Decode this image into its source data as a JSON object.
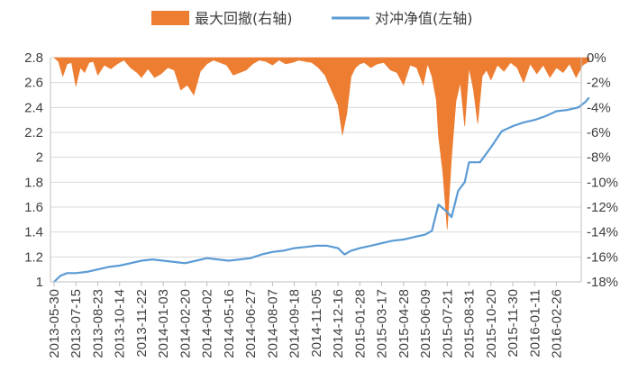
{
  "chart_data": {
    "type": "line+area",
    "title": "",
    "legend": {
      "position": "top-center",
      "items": [
        {
          "label": "最大回撤(右轴)",
          "type": "area",
          "color": "#ED7D31"
        },
        {
          "label": "对冲净值(左轴)",
          "type": "line",
          "color": "#5B9BD5"
        }
      ]
    },
    "left_axis": {
      "min": 1,
      "max": 2.8,
      "ticks": [
        "1",
        "1.2",
        "1.4",
        "1.6",
        "1.8",
        "2",
        "2.2",
        "2.4",
        "2.6",
        "2.8"
      ]
    },
    "right_axis": {
      "min": -18,
      "max": 0,
      "ticks": [
        "0%",
        "-2%",
        "-4%",
        "-6%",
        "-8%",
        "-10%",
        "-12%",
        "-14%",
        "-16%",
        "-18%"
      ]
    },
    "x_ticks": [
      "2013-05-30",
      "2013-07-15",
      "2013-08-23",
      "2013-10-14",
      "2013-11-22",
      "2014-01-03",
      "2014-02-20",
      "2014-04-02",
      "2014-05-16",
      "2014-06-27",
      "2014-08-07",
      "2014-09-18",
      "2014-11-05",
      "2014-12-16",
      "2015-01-28",
      "2015-03-17",
      "2015-04-28",
      "2015-06-09",
      "2015-07-21",
      "2015-08-31",
      "2015-10-20",
      "2015-11-30",
      "2016-01-11",
      "2016-02-26"
    ],
    "series": [
      {
        "name": "对冲净值(左轴)",
        "axis": "left",
        "x_index": [
          0,
          0.3,
          0.6,
          1,
          1.5,
          2,
          2.5,
          3,
          3.5,
          4,
          4.5,
          5,
          5.5,
          6,
          6.5,
          7,
          7.5,
          8,
          8.5,
          9,
          9.5,
          10,
          10.5,
          11,
          11.5,
          12,
          12.5,
          13,
          13.3,
          13.6,
          14,
          14.5,
          15,
          15.5,
          16,
          16.5,
          17,
          17.3,
          17.6,
          18,
          18.2,
          18.5,
          18.8,
          19,
          19.5,
          20,
          20.5,
          21,
          21.5,
          22,
          22.5,
          23,
          23.5,
          24,
          24.3,
          24.5
        ],
        "values": [
          1.0,
          1.05,
          1.07,
          1.07,
          1.08,
          1.1,
          1.12,
          1.13,
          1.15,
          1.17,
          1.18,
          1.17,
          1.16,
          1.15,
          1.17,
          1.19,
          1.18,
          1.17,
          1.18,
          1.19,
          1.22,
          1.24,
          1.25,
          1.27,
          1.28,
          1.29,
          1.29,
          1.27,
          1.22,
          1.25,
          1.27,
          1.29,
          1.31,
          1.33,
          1.34,
          1.36,
          1.38,
          1.41,
          1.62,
          1.56,
          1.52,
          1.73,
          1.8,
          1.96,
          1.96,
          2.08,
          2.21,
          2.25,
          2.28,
          2.3,
          2.33,
          2.37,
          2.38,
          2.4,
          2.44,
          2.48
        ]
      },
      {
        "name": "最大回撤(右轴)",
        "axis": "right",
        "unit": "%",
        "x_index": [
          0,
          0.2,
          0.4,
          0.6,
          0.8,
          1,
          1.2,
          1.4,
          1.6,
          1.8,
          2,
          2.3,
          2.6,
          2.9,
          3.2,
          3.5,
          3.8,
          4,
          4.3,
          4.6,
          4.9,
          5.2,
          5.5,
          5.8,
          6.1,
          6.4,
          6.7,
          7,
          7.3,
          7.6,
          7.9,
          8.2,
          8.5,
          8.8,
          9.1,
          9.4,
          9.7,
          10,
          10.3,
          10.6,
          10.9,
          11.2,
          11.5,
          11.8,
          12.1,
          12.4,
          12.7,
          13,
          13.2,
          13.4,
          13.6,
          13.8,
          14,
          14.2,
          14.5,
          14.8,
          15.1,
          15.4,
          15.7,
          16,
          16.3,
          16.6,
          16.9,
          17.1,
          17.3,
          17.5,
          17.6,
          17.8,
          18,
          18.2,
          18.4,
          18.6,
          18.8,
          19,
          19.2,
          19.4,
          19.6,
          19.8,
          20,
          20.3,
          20.6,
          20.9,
          21.2,
          21.5,
          21.8,
          22.1,
          22.4,
          22.7,
          23,
          23.3,
          23.6,
          23.9,
          24.2,
          24.5
        ],
        "values": [
          0,
          -0.3,
          -1.5,
          -0.5,
          -0.4,
          -2.3,
          -0.8,
          -1.2,
          -0.4,
          -0.3,
          -1.4,
          -0.6,
          -0.9,
          -0.5,
          -0.2,
          -0.8,
          -1.2,
          -1.6,
          -0.9,
          -1.6,
          -1.3,
          -0.8,
          -1.0,
          -2.6,
          -2.2,
          -3.0,
          -1.1,
          -0.5,
          -0.2,
          -0.4,
          -0.6,
          -1.4,
          -1.2,
          -1.0,
          -0.5,
          -0.2,
          -0.3,
          -0.6,
          -0.2,
          -0.5,
          -0.4,
          -0.2,
          -0.3,
          -0.4,
          -0.8,
          -1.4,
          -2.6,
          -3.8,
          -6.2,
          -4.5,
          -1.5,
          -0.8,
          -0.5,
          -0.4,
          -0.8,
          -0.5,
          -0.4,
          -1.0,
          -1.2,
          -2.2,
          -0.6,
          -0.8,
          -2.2,
          -0.5,
          -1.5,
          -3.4,
          -6.3,
          -9.2,
          -13.8,
          -8.0,
          -3.5,
          -2.0,
          -5.5,
          -0.8,
          -2.6,
          -5.3,
          -1.5,
          -1.0,
          -1.8,
          -0.6,
          -1.1,
          -0.4,
          -0.8,
          -2.0,
          -0.5,
          -1.3,
          -0.6,
          -1.6,
          -0.8,
          -1.2,
          -0.5,
          -1.6,
          -0.6,
          -0.3
        ]
      }
    ]
  }
}
